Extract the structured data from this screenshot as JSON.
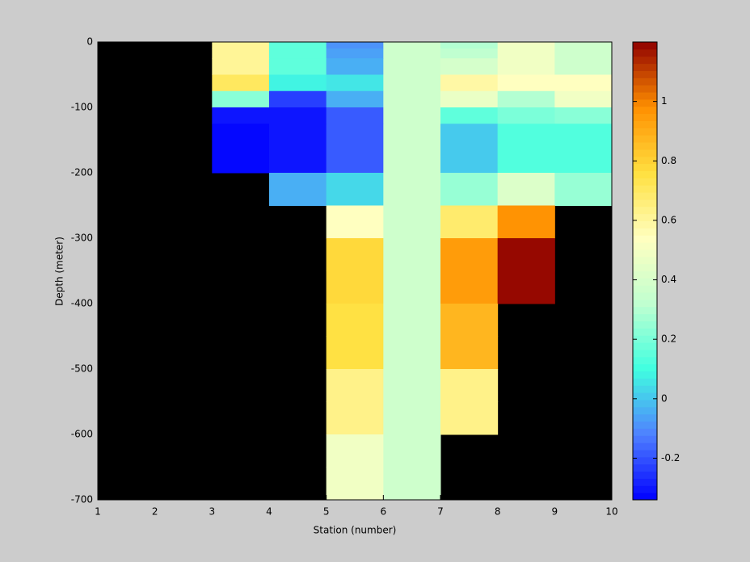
{
  "chart_data": {
    "type": "heatmap",
    "xlabel": "Station (number)",
    "ylabel": "Depth (meter)",
    "x": [
      1,
      2,
      3,
      4,
      5,
      6,
      7,
      8,
      9,
      10
    ],
    "y": [
      0,
      -10,
      -25,
      -50,
      -75,
      -100,
      -125,
      -150,
      -200,
      -250,
      -300,
      -350,
      -400,
      -450,
      -500,
      -550,
      -600,
      -650,
      -700
    ],
    "z": [
      [
        null,
        null,
        0.62,
        0.15,
        -0.08,
        0.36,
        0.3,
        0.5,
        0.38
      ],
      [
        null,
        null,
        0.6,
        0.15,
        -0.06,
        0.36,
        0.32,
        0.5,
        0.38
      ],
      [
        null,
        null,
        0.6,
        0.15,
        -0.04,
        0.36,
        0.4,
        0.5,
        0.38
      ],
      [
        null,
        null,
        0.7,
        0.08,
        0.05,
        0.36,
        0.58,
        0.55,
        0.55
      ],
      [
        null,
        null,
        0.22,
        -0.22,
        -0.05,
        0.36,
        0.47,
        0.3,
        0.5
      ],
      [
        null,
        null,
        -0.3,
        -0.3,
        -0.18,
        0.36,
        0.15,
        0.2,
        0.22
      ],
      [
        null,
        null,
        -0.34,
        -0.3,
        -0.18,
        0.36,
        0.02,
        0.12,
        0.13
      ],
      [
        null,
        null,
        -0.34,
        -0.3,
        -0.18,
        0.36,
        0.02,
        0.12,
        0.13
      ],
      [
        null,
        null,
        null,
        -0.05,
        0.03,
        0.36,
        0.25,
        0.42,
        0.25
      ],
      [
        null,
        null,
        null,
        null,
        0.55,
        0.36,
        0.68,
        0.98,
        null
      ],
      [
        null,
        null,
        null,
        null,
        0.78,
        0.36,
        0.95,
        1.2,
        null
      ],
      [
        null,
        null,
        null,
        null,
        0.78,
        0.36,
        0.95,
        1.2,
        null
      ],
      [
        null,
        null,
        null,
        null,
        0.76,
        0.36,
        0.88,
        null,
        null
      ],
      [
        null,
        null,
        null,
        null,
        0.76,
        0.36,
        0.88,
        null,
        null
      ],
      [
        null,
        null,
        null,
        null,
        0.64,
        0.36,
        0.64,
        null,
        null
      ],
      [
        null,
        null,
        null,
        null,
        0.64,
        0.36,
        0.64,
        null,
        null
      ],
      [
        null,
        null,
        null,
        null,
        0.5,
        0.36,
        null,
        null,
        null
      ],
      [
        null,
        null,
        null,
        null,
        0.5,
        0.36,
        null,
        null,
        null
      ]
    ],
    "xlim": [
      1,
      10
    ],
    "xticks": [
      1,
      2,
      3,
      4,
      5,
      6,
      7,
      8,
      9,
      10
    ],
    "ylim": [
      -700,
      0
    ],
    "yticks": [
      0,
      -100,
      -200,
      -300,
      -400,
      -500,
      -600,
      -700
    ],
    "clim": [
      -0.34,
      1.2
    ],
    "cticks": [
      -0.2,
      0,
      0.2,
      0.4,
      0.6,
      0.8,
      1
    ],
    "colormap": [
      "#0000ff",
      "#4f80ff",
      "#40ffe0",
      "#c0ffd0",
      "#ffffc0",
      "#ffe040",
      "#ff9000",
      "#900000"
    ],
    "colormap_levels": 64,
    "missing_color": "#000000"
  }
}
